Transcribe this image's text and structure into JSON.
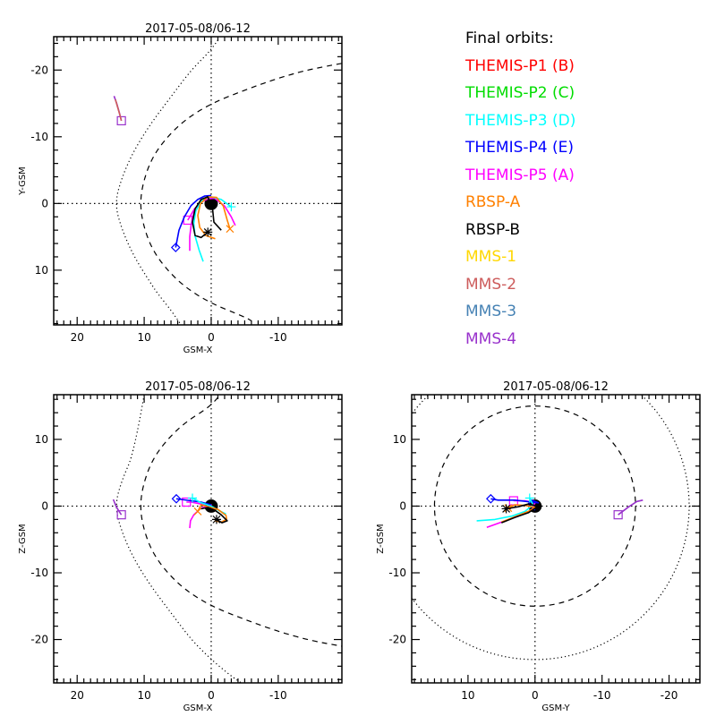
{
  "legend": {
    "title": "Final orbits:",
    "entries": [
      {
        "label": "THEMIS-P1 (B)",
        "color": "#ff0000"
      },
      {
        "label": "THEMIS-P2 (C)",
        "color": "#00dd00"
      },
      {
        "label": "THEMIS-P3 (D)",
        "color": "#00ffff"
      },
      {
        "label": "THEMIS-P4 (E)",
        "color": "#0000ff"
      },
      {
        "label": "THEMIS-P5 (A)",
        "color": "#ff00ff"
      },
      {
        "label": "RBSP-A",
        "color": "#ff8000"
      },
      {
        "label": "RBSP-B",
        "color": "#000000"
      },
      {
        "label": "MMS-1",
        "color": "#ffd700"
      },
      {
        "label": "MMS-2",
        "color": "#cd5c5c"
      },
      {
        "label": "MMS-3",
        "color": "#4682b4"
      },
      {
        "label": "MMS-4",
        "color": "#9932cc"
      }
    ]
  },
  "chart_data": [
    {
      "type": "line",
      "title": "2017-05-08/06-12",
      "xlabel": "GSM-X",
      "ylabel": "Y-GSM",
      "xlim": [
        23.5,
        -19.5
      ],
      "ylim": [
        -25,
        18.2
      ],
      "xticks": [
        20,
        10,
        0,
        -10
      ],
      "yticks": [
        -20,
        -10,
        0,
        10
      ],
      "xtick_labels": [
        "20",
        "10",
        "0",
        "-10"
      ],
      "ytick_labels": [
        "-20",
        "-10",
        "0",
        "10"
      ],
      "earth": {
        "x": 0,
        "y": 0,
        "r": 1
      },
      "boundaries": {
        "magnetopause": [
          [
            -19.5,
            -21
          ],
          [
            -15,
            -20.2
          ],
          [
            -10,
            -18.8
          ],
          [
            -5,
            -17
          ],
          [
            0,
            -15
          ],
          [
            4,
            -12.5
          ],
          [
            7,
            -9.5
          ],
          [
            9,
            -6.5
          ],
          [
            10.2,
            -3
          ],
          [
            10.6,
            0
          ],
          [
            10.2,
            3
          ],
          [
            9,
            6.5
          ],
          [
            7,
            9.5
          ],
          [
            4,
            12.5
          ],
          [
            0,
            15
          ],
          [
            -5,
            17
          ],
          [
            -6,
            17.6
          ]
        ],
        "bow_shock": [
          [
            -1,
            -24.5
          ],
          [
            0,
            -23
          ],
          [
            3,
            -20
          ],
          [
            6,
            -16
          ],
          [
            9,
            -12
          ],
          [
            11.5,
            -8
          ],
          [
            13.3,
            -4
          ],
          [
            14.4,
            0
          ],
          [
            13.3,
            4
          ],
          [
            11.5,
            8
          ],
          [
            9,
            12
          ],
          [
            8,
            13.5
          ],
          [
            6,
            16
          ],
          [
            4.5,
            18.2
          ]
        ]
      },
      "series": [
        {
          "name": "THEMIS-P5 (A)",
          "color": "#ff00ff",
          "points": [
            [
              -3.6,
              3.3
            ],
            [
              -3,
              2
            ],
            [
              -2,
              0.4
            ],
            [
              -0.5,
              -0.8
            ],
            [
              0.5,
              -0.7
            ],
            [
              1.5,
              -0.2
            ],
            [
              2.5,
              0.8
            ],
            [
              3.5,
              2.5
            ]
          ],
          "end_marker": "square"
        },
        {
          "name": "THEMIS-P5 (A) tail",
          "color": "#ff00ff",
          "points": [
            [
              3.2,
              7.1
            ],
            [
              3.2,
              5
            ],
            [
              3,
              3.3
            ],
            [
              2.8,
              2.3
            ],
            [
              2.5,
              1.1
            ]
          ]
        },
        {
          "name": "THEMIS-P4 (E)",
          "color": "#0000ff",
          "points": [
            [
              0,
              -1.2
            ],
            [
              1,
              -1.1
            ],
            [
              2,
              -0.6
            ],
            [
              3,
              0.3
            ],
            [
              4,
              2
            ],
            [
              4.8,
              4
            ],
            [
              5.3,
              6.6
            ]
          ],
          "end_marker": "diamond"
        },
        {
          "name": "THEMIS-P3 (D)",
          "color": "#00ffff",
          "points": [
            [
              1.2,
              8.7
            ],
            [
              1.8,
              7
            ],
            [
              2.4,
              4.9
            ],
            [
              2.6,
              3
            ],
            [
              2.3,
              1.1
            ],
            [
              1.3,
              -0.6
            ],
            [
              0,
              -1
            ],
            [
              -1.5,
              -0.6
            ],
            [
              -3,
              0.5
            ]
          ],
          "end_marker": "plus"
        },
        {
          "name": "RBSP-A",
          "color": "#ff8000",
          "points": [
            [
              -0.6,
              5.3
            ],
            [
              0.8,
              4.8
            ],
            [
              1.7,
              3.6
            ],
            [
              2,
              1.8
            ],
            [
              1.6,
              0
            ],
            [
              0.5,
              -1
            ],
            [
              -0.8,
              -0.9
            ],
            [
              -1.8,
              0.4
            ],
            [
              -2.4,
              2.5
            ],
            [
              -2.8,
              3.8
            ]
          ],
          "end_marker": "x"
        },
        {
          "name": "RBSP-B",
          "color": "#000000",
          "points": [
            [
              -1.5,
              4
            ],
            [
              -0.4,
              2.8
            ],
            [
              -0.2,
              0.8
            ],
            [
              0.5,
              -1
            ],
            [
              1.5,
              -0.6
            ],
            [
              2.4,
              0.8
            ],
            [
              2.8,
              2.8
            ],
            [
              2.4,
              4.8
            ],
            [
              1.5,
              5.1
            ],
            [
              0.5,
              4.3
            ]
          ],
          "end_marker": "asterisk"
        },
        {
          "name": "MMS-4",
          "color": "#9932cc",
          "points": [
            [
              14.5,
              -16.1
            ],
            [
              14.1,
              -15
            ],
            [
              13.7,
              -13.6
            ],
            [
              13.4,
              -12.4
            ]
          ],
          "end_marker": "square"
        },
        {
          "name": "MMS-2",
          "color": "#cd5c5c",
          "points": [
            [
              14.3,
              -15.6
            ],
            [
              13.6,
              -13.2
            ],
            [
              13.4,
              -12.4
            ]
          ]
        }
      ]
    },
    {
      "type": "line",
      "title": "2017-05-08/06-12",
      "xlabel": "GSM-X",
      "ylabel": "Z-GSM",
      "xlim": [
        23.5,
        -19.5
      ],
      "ylim": [
        16.7,
        -26.5
      ],
      "xticks": [
        20,
        10,
        0,
        -10
      ],
      "yticks": [
        10,
        0,
        -10,
        -20
      ],
      "xtick_labels": [
        "20",
        "10",
        "0",
        "-10"
      ],
      "ytick_labels": [
        "10",
        "0",
        "-10",
        "-20"
      ],
      "earth": {
        "x": 0,
        "y": 0,
        "r": 1
      },
      "boundaries": {
        "magnetopause": [
          [
            -1,
            16.3
          ],
          [
            0,
            15
          ],
          [
            4,
            12.5
          ],
          [
            7,
            9.5
          ],
          [
            9,
            6.5
          ],
          [
            10.2,
            3
          ],
          [
            10.6,
            0
          ],
          [
            10.2,
            -3
          ],
          [
            9,
            -6.5
          ],
          [
            7,
            -9.5
          ],
          [
            4,
            -12.5
          ],
          [
            0,
            -15
          ],
          [
            -5,
            -17
          ],
          [
            -10,
            -18.8
          ],
          [
            -15,
            -20.2
          ],
          [
            -19.5,
            -21
          ]
        ],
        "bow_shock": [
          [
            10,
            16.7
          ],
          [
            11.5,
            8
          ],
          [
            13.3,
            4
          ],
          [
            14.4,
            0
          ],
          [
            13.3,
            -4
          ],
          [
            11.5,
            -8
          ],
          [
            9,
            -12
          ],
          [
            6,
            -16
          ],
          [
            3,
            -20
          ],
          [
            0,
            -23
          ],
          [
            -3,
            -25.5
          ],
          [
            -4.5,
            -26.5
          ]
        ]
      },
      "series": [
        {
          "name": "THEMIS-P5 (A)",
          "color": "#ff00ff",
          "points": [
            [
              3.2,
              -3.3
            ],
            [
              3.1,
              -2.2
            ],
            [
              2.6,
              -1.3
            ],
            [
              1.5,
              -0.3
            ],
            [
              0,
              0.2
            ],
            [
              1.5,
              0.3
            ],
            [
              3,
              0.6
            ],
            [
              3.7,
              0.6
            ]
          ],
          "end_marker": "square"
        },
        {
          "name": "THEMIS-P4 (E)",
          "color": "#0000ff",
          "points": [
            [
              0,
              0.2
            ],
            [
              1.5,
              0.6
            ],
            [
              3,
              0.8
            ],
            [
              4.5,
              1
            ],
            [
              5.2,
              1.1
            ]
          ],
          "end_marker": "diamond"
        },
        {
          "name": "THEMIS-P3 (D)",
          "color": "#00ffff",
          "points": [
            [
              -2.2,
              -1.2
            ],
            [
              -1,
              -0.6
            ],
            [
              0,
              0
            ],
            [
              1.5,
              0.5
            ],
            [
              2.8,
              1.2
            ]
          ],
          "end_marker": "plus"
        },
        {
          "name": "RBSP-A",
          "color": "#ff8000",
          "points": [
            [
              -0.5,
              -2.2
            ],
            [
              -1.5,
              -2.4
            ],
            [
              -2.3,
              -2
            ],
            [
              -2.2,
              -1.4
            ],
            [
              -1,
              -0.5
            ],
            [
              0.5,
              -0.1
            ],
            [
              1.5,
              0.2
            ],
            [
              2,
              -0.8
            ]
          ],
          "end_marker": "x"
        },
        {
          "name": "RBSP-B",
          "color": "#000000",
          "points": [
            [
              1.5,
              -0.4
            ],
            [
              0.5,
              -0.2
            ],
            [
              -0.5,
              -0.6
            ],
            [
              -1.5,
              -1.3
            ],
            [
              -2.4,
              -2.2
            ],
            [
              -1.6,
              -2.5
            ],
            [
              -0.8,
              -2
            ]
          ],
          "end_marker": "asterisk"
        },
        {
          "name": "MMS-4",
          "color": "#9932cc",
          "points": [
            [
              14.6,
              1
            ],
            [
              14.2,
              0
            ],
            [
              13.8,
              -0.7
            ],
            [
              13.4,
              -1.3
            ]
          ],
          "end_marker": "square"
        }
      ]
    },
    {
      "type": "line",
      "title": "2017-05-08/06-12",
      "xlabel": "GSM-Y",
      "ylabel": "Z-GSM",
      "xlim": [
        18.4,
        -24.6
      ],
      "ylim": [
        16.7,
        -26.5
      ],
      "xticks": [
        10,
        0,
        -10,
        -20
      ],
      "yticks": [
        10,
        0,
        -10,
        -20
      ],
      "xtick_labels": [
        "10",
        "0",
        "-10",
        "-20"
      ],
      "ytick_labels": [
        "10",
        "0",
        "-10",
        "-20"
      ],
      "earth": {
        "x": 0,
        "y": 0,
        "r": 1
      },
      "boundaries": {
        "magnetopause_circle_radius": 15,
        "bow_shock_circle_radius": 23
      },
      "series": [
        {
          "name": "THEMIS-P5 (A)",
          "color": "#ff00ff",
          "points": [
            [
              7.2,
              -3.2
            ],
            [
              5,
              -2.4
            ],
            [
              2.5,
              -1.5
            ],
            [
              0.5,
              -0.6
            ],
            [
              0,
              0.5
            ],
            [
              1.5,
              0.8
            ],
            [
              3.2,
              0.8
            ]
          ],
          "end_marker": "square"
        },
        {
          "name": "THEMIS-P4 (E)",
          "color": "#0000ff",
          "points": [
            [
              0,
              -0.6
            ],
            [
              1,
              0.3
            ],
            [
              0.5,
              0.9
            ],
            [
              -0.5,
              0.5
            ],
            [
              3,
              0.9
            ],
            [
              5.5,
              0.9
            ],
            [
              6.6,
              1.1
            ]
          ],
          "end_marker": "diamond"
        },
        {
          "name": "THEMIS-P3 (D)",
          "color": "#00ffff",
          "points": [
            [
              8.7,
              -2.2
            ],
            [
              6,
              -2
            ],
            [
              3.5,
              -1.5
            ],
            [
              1.5,
              -0.8
            ],
            [
              0.3,
              0.2
            ],
            [
              0.8,
              1.2
            ]
          ],
          "end_marker": "plus"
        },
        {
          "name": "RBSP-A",
          "color": "#ff8000",
          "points": [
            [
              5,
              -2.4
            ],
            [
              3,
              -1.6
            ],
            [
              1,
              -0.8
            ],
            [
              0,
              -0.2
            ],
            [
              1.5,
              0.1
            ],
            [
              3,
              0.2
            ],
            [
              4,
              -0.3
            ]
          ],
          "end_marker": "x"
        },
        {
          "name": "RBSP-B",
          "color": "#000000",
          "points": [
            [
              5,
              -2.5
            ],
            [
              3,
              -1.7
            ],
            [
              1,
              -1
            ],
            [
              -0.5,
              0
            ],
            [
              1,
              0.3
            ],
            [
              2.5,
              -0.1
            ],
            [
              4.3,
              -0.4
            ]
          ],
          "end_marker": "asterisk"
        },
        {
          "name": "MMS-4",
          "color": "#9932cc",
          "points": [
            [
              -16.1,
              0.9
            ],
            [
              -15.2,
              0.7
            ],
            [
              -14,
              -0.1
            ],
            [
              -12.4,
              -1.3
            ]
          ],
          "end_marker": "square"
        }
      ]
    }
  ]
}
